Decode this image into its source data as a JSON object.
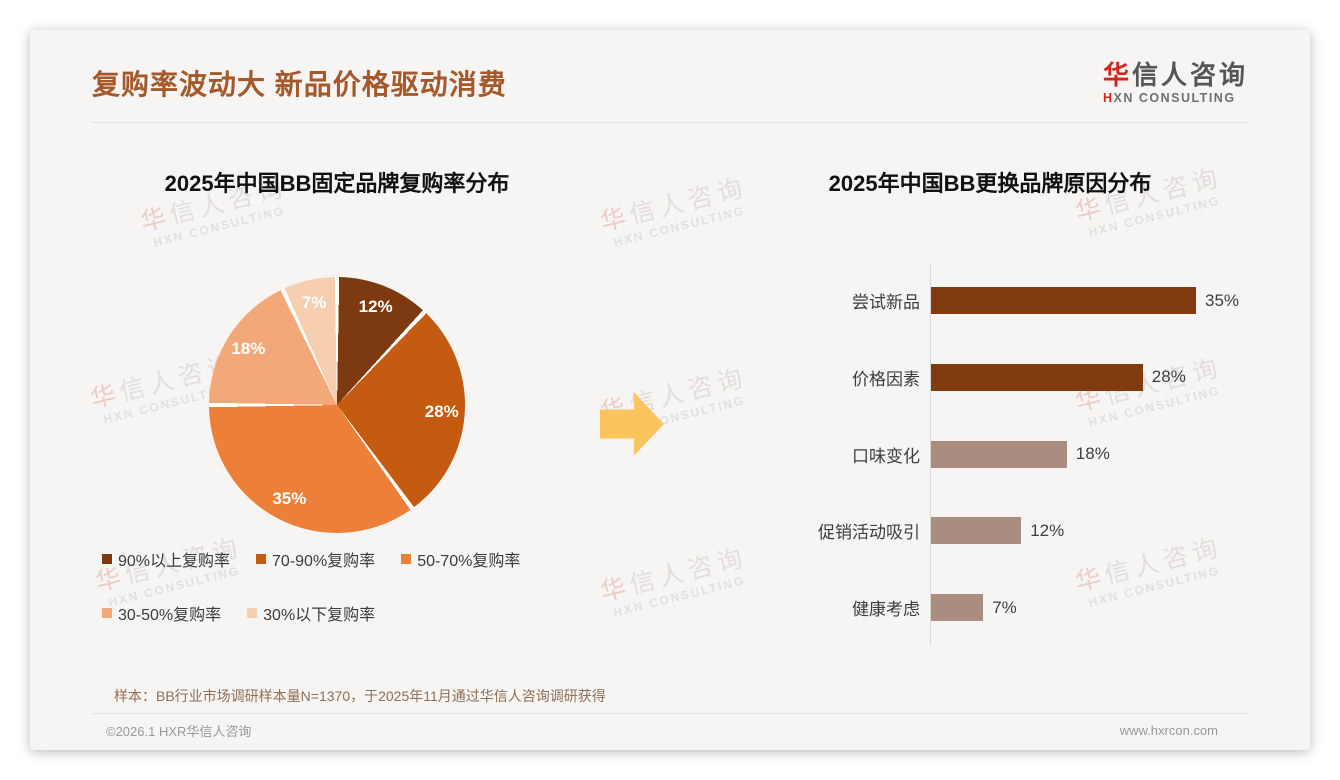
{
  "header": {
    "title": "复购率波动大 新品价格驱动消费",
    "logo": {
      "cn_first": "华",
      "cn_rest": "信人咨询",
      "en_first": "H",
      "en_rest": "XN CONSULTING"
    }
  },
  "watermark": {
    "cn_first": "华",
    "cn_rest": "信人咨询",
    "en": "HXN CONSULTING"
  },
  "chart_data": [
    {
      "type": "pie",
      "title": "2025年中国BB固定品牌复购率分布",
      "labels": [
        "90%以上复购率",
        "70-90%复购率",
        "50-70%复购率",
        "30-50%复购率",
        "30%以下复购率"
      ],
      "values": [
        12,
        28,
        35,
        18,
        7
      ],
      "value_labels": [
        "12%",
        "28%",
        "35%",
        "18%",
        "7%"
      ],
      "colors": [
        "#7d3a10",
        "#c55a11",
        "#ec8038",
        "#f2a878",
        "#f6ceb0"
      ],
      "start_angle_deg": 0,
      "direction": "clockwise",
      "legend_position": "bottom",
      "legend_rows": [
        [
          0,
          1,
          2
        ],
        [
          3,
          4
        ]
      ]
    },
    {
      "type": "bar",
      "title": "2025年中国BB更换品牌原因分布",
      "orientation": "horizontal",
      "categories": [
        "尝试新品",
        "价格因素",
        "口味变化",
        "促销活动吸引",
        "健康考虑"
      ],
      "values": [
        35,
        28,
        18,
        12,
        7
      ],
      "value_labels": [
        "35%",
        "28%",
        "18%",
        "12%",
        "7%"
      ],
      "bar_colors": [
        "#803c0f",
        "#803c0f",
        "#a98d80",
        "#a98d80",
        "#a98d80"
      ],
      "xlim": [
        0,
        37
      ],
      "grid": false,
      "legend_position": "none"
    }
  ],
  "footer": {
    "sample_note": "样本：BB行业市场调研样本量N=1370，于2025年11月通过华信人咨询调研获得",
    "copyright": "©2026.1 HXR华信人咨询",
    "website": "www.hxrcon.com"
  },
  "colors": {
    "accent_title": "#a5592a",
    "arrow": "#fac55c",
    "bar_dark": "#803c0f",
    "bar_mauve": "#a98d80",
    "logo_red": "#d2251d",
    "card_bg": "#f6f5f3"
  }
}
